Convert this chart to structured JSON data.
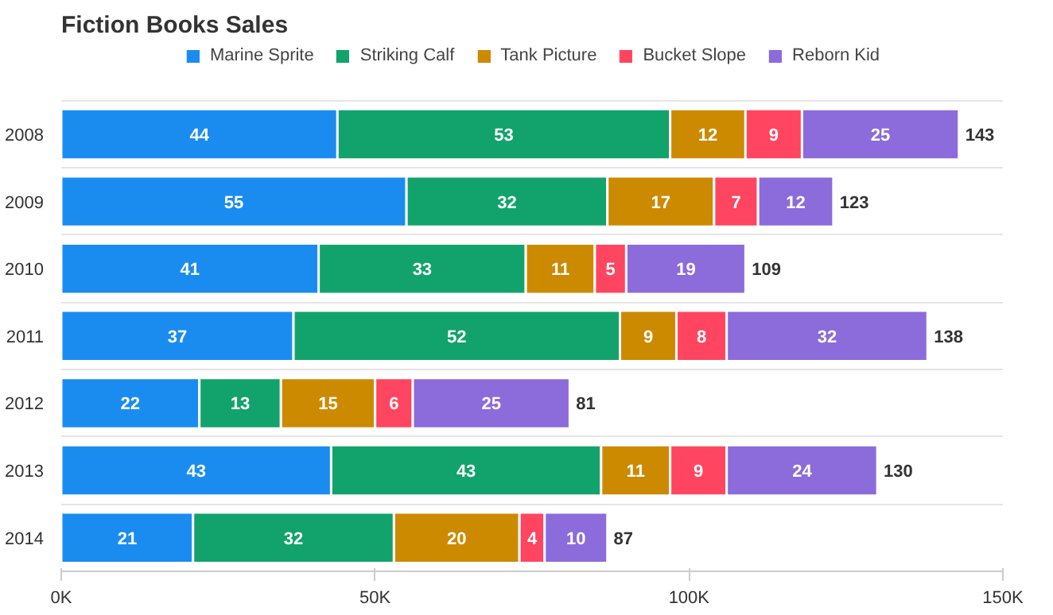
{
  "chart_data": {
    "type": "bar",
    "title": "Fiction Books Sales",
    "orientation": "horizontal",
    "stacked": true,
    "categories": [
      "2008",
      "2009",
      "2010",
      "2011",
      "2012",
      "2013",
      "2014"
    ],
    "series": [
      {
        "name": "Marine Sprite",
        "color": "#1a8cf0",
        "values": [
          44,
          55,
          41,
          37,
          22,
          43,
          21
        ]
      },
      {
        "name": "Striking Calf",
        "color": "#11a36b",
        "values": [
          53,
          32,
          33,
          52,
          13,
          43,
          32
        ]
      },
      {
        "name": "Tank Picture",
        "color": "#cc8a00",
        "values": [
          12,
          17,
          11,
          9,
          15,
          11,
          20
        ]
      },
      {
        "name": "Bucket Slope",
        "color": "#ff4560",
        "values": [
          9,
          7,
          5,
          8,
          6,
          9,
          4
        ]
      },
      {
        "name": "Reborn Kid",
        "color": "#8c6bdb",
        "values": [
          25,
          12,
          19,
          32,
          25,
          24,
          10
        ]
      }
    ],
    "totals": [
      "143",
      "123",
      "109",
      "138",
      "81",
      "130",
      "87"
    ],
    "xlim": [
      0,
      150
    ],
    "xticks": [
      {
        "value": 0,
        "label": "0K"
      },
      {
        "value": 50,
        "label": "50K"
      },
      {
        "value": 100,
        "label": "100K"
      },
      {
        "value": 150,
        "label": "150K"
      }
    ],
    "data_labels": true,
    "legend": "top",
    "grid": "y"
  }
}
